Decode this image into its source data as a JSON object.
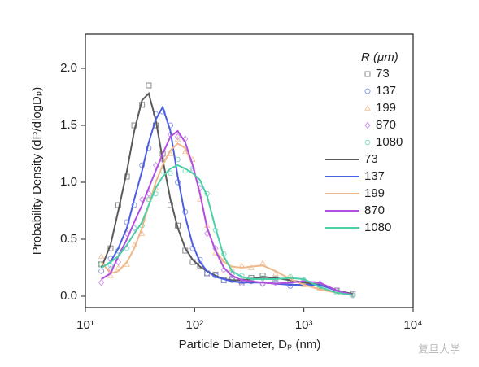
{
  "chart_data": {
    "type": "line",
    "x_label": "Particle Diameter, Dₚ (nm)",
    "y_label": "Probability Density (dP/dlogDₚ)",
    "legend_title": "R (μm)",
    "legend": "upper right",
    "xscale": "log",
    "xlim": [
      10,
      10000
    ],
    "xticks": [
      {
        "value": 10,
        "label": "10¹"
      },
      {
        "value": 100,
        "label": "10²"
      },
      {
        "value": 1000,
        "label": "10³"
      },
      {
        "value": 10000,
        "label": "10⁴"
      }
    ],
    "ylim": [
      -0.1,
      2.3
    ],
    "yticks": [
      {
        "value": 0,
        "label": "0.0"
      },
      {
        "value": 0.5,
        "label": "0.5"
      },
      {
        "value": 1,
        "label": "1.0"
      },
      {
        "value": 1.5,
        "label": "1.5"
      },
      {
        "value": 2,
        "label": "2.0"
      }
    ],
    "x": [
      14,
      17,
      20,
      24,
      28,
      33,
      38,
      44,
      51,
      60,
      70,
      82,
      96,
      112,
      130,
      155,
      185,
      220,
      270,
      330,
      420,
      550,
      750,
      1000,
      1400,
      2000,
      2800
    ],
    "series": [
      {
        "name": "73",
        "style": "markers",
        "marker": "square",
        "color": "#8a8a8a",
        "values": [
          0.28,
          0.42,
          0.8,
          1.05,
          1.5,
          1.68,
          1.85,
          1.5,
          1.25,
          0.8,
          0.62,
          0.4,
          0.3,
          0.27,
          0.2,
          0.19,
          0.14,
          0.15,
          0.13,
          0.16,
          0.18,
          0.15,
          0.13,
          0.12,
          0.09,
          0.05,
          0.02
        ]
      },
      {
        "name": "137",
        "style": "markers",
        "marker": "circle",
        "color": "#8f9ae8",
        "values": [
          0.22,
          0.33,
          0.4,
          0.65,
          0.8,
          1.15,
          1.3,
          1.6,
          1.62,
          1.5,
          1.0,
          0.74,
          0.42,
          0.32,
          0.2,
          0.18,
          0.14,
          0.14,
          0.11,
          0.13,
          0.11,
          0.12,
          0.09,
          0.11,
          0.1,
          0.05,
          0.01
        ]
      },
      {
        "name": "199",
        "style": "markers",
        "marker": "triangle",
        "color": "#f3c9a3",
        "values": [
          0.35,
          0.18,
          0.25,
          0.28,
          0.45,
          0.55,
          0.85,
          0.95,
          1.2,
          1.25,
          1.38,
          1.27,
          1.2,
          0.85,
          0.62,
          0.38,
          0.32,
          0.24,
          0.27,
          0.25,
          0.29,
          0.2,
          0.16,
          0.1,
          0.07,
          0.03,
          0.01
        ]
      },
      {
        "name": "870",
        "style": "markers",
        "marker": "diamond",
        "color": "#cf95ea",
        "values": [
          0.12,
          0.24,
          0.3,
          0.55,
          0.6,
          0.85,
          0.9,
          1.15,
          1.2,
          1.42,
          1.4,
          1.38,
          1.1,
          0.95,
          0.55,
          0.42,
          0.23,
          0.19,
          0.13,
          0.14,
          0.11,
          0.12,
          0.11,
          0.14,
          0.11,
          0.05,
          0.01
        ]
      },
      {
        "name": "1080",
        "style": "markers",
        "marker": "hexagon",
        "color": "#8fdfc8",
        "values": [
          0.28,
          0.27,
          0.4,
          0.42,
          0.6,
          0.62,
          0.85,
          0.9,
          1.1,
          1.08,
          1.2,
          1.1,
          1.12,
          0.98,
          0.9,
          0.58,
          0.37,
          0.2,
          0.18,
          0.14,
          0.16,
          0.14,
          0.17,
          0.14,
          0.08,
          0.03,
          0.01
        ]
      },
      {
        "name": "73",
        "style": "line",
        "color": "#5a5a5a",
        "values": [
          0.25,
          0.45,
          0.75,
          1.1,
          1.45,
          1.72,
          1.78,
          1.55,
          1.2,
          0.85,
          0.6,
          0.42,
          0.32,
          0.26,
          0.22,
          0.18,
          0.15,
          0.14,
          0.14,
          0.15,
          0.17,
          0.16,
          0.14,
          0.12,
          0.1,
          0.05,
          0.02
        ]
      },
      {
        "name": "137",
        "style": "line",
        "color": "#4b5fe0",
        "values": [
          0.25,
          0.3,
          0.42,
          0.6,
          0.85,
          1.1,
          1.35,
          1.55,
          1.66,
          1.45,
          1.05,
          0.7,
          0.45,
          0.3,
          0.22,
          0.17,
          0.15,
          0.13,
          0.12,
          0.12,
          0.12,
          0.11,
          0.1,
          0.1,
          0.1,
          0.05,
          0.01
        ]
      },
      {
        "name": "199",
        "style": "line",
        "color": "#f0b888",
        "values": [
          0.3,
          0.2,
          0.22,
          0.3,
          0.42,
          0.6,
          0.8,
          1.0,
          1.15,
          1.28,
          1.34,
          1.3,
          1.15,
          0.9,
          0.6,
          0.4,
          0.3,
          0.26,
          0.25,
          0.26,
          0.27,
          0.22,
          0.15,
          0.1,
          0.06,
          0.03,
          0.01
        ]
      },
      {
        "name": "870",
        "style": "line",
        "color": "#b34fe0",
        "values": [
          0.15,
          0.2,
          0.35,
          0.5,
          0.65,
          0.8,
          0.95,
          1.1,
          1.25,
          1.4,
          1.45,
          1.35,
          1.15,
          0.9,
          0.6,
          0.4,
          0.25,
          0.18,
          0.14,
          0.13,
          0.12,
          0.11,
          0.12,
          0.13,
          0.12,
          0.05,
          0.01
        ]
      },
      {
        "name": "1080",
        "style": "line",
        "color": "#4ccfa8",
        "values": [
          0.25,
          0.3,
          0.35,
          0.45,
          0.55,
          0.65,
          0.8,
          0.95,
          1.05,
          1.12,
          1.15,
          1.12,
          1.08,
          1.02,
          0.88,
          0.6,
          0.35,
          0.22,
          0.17,
          0.15,
          0.15,
          0.15,
          0.16,
          0.15,
          0.08,
          0.03,
          0.01
        ]
      }
    ]
  },
  "watermark": "复旦大学"
}
